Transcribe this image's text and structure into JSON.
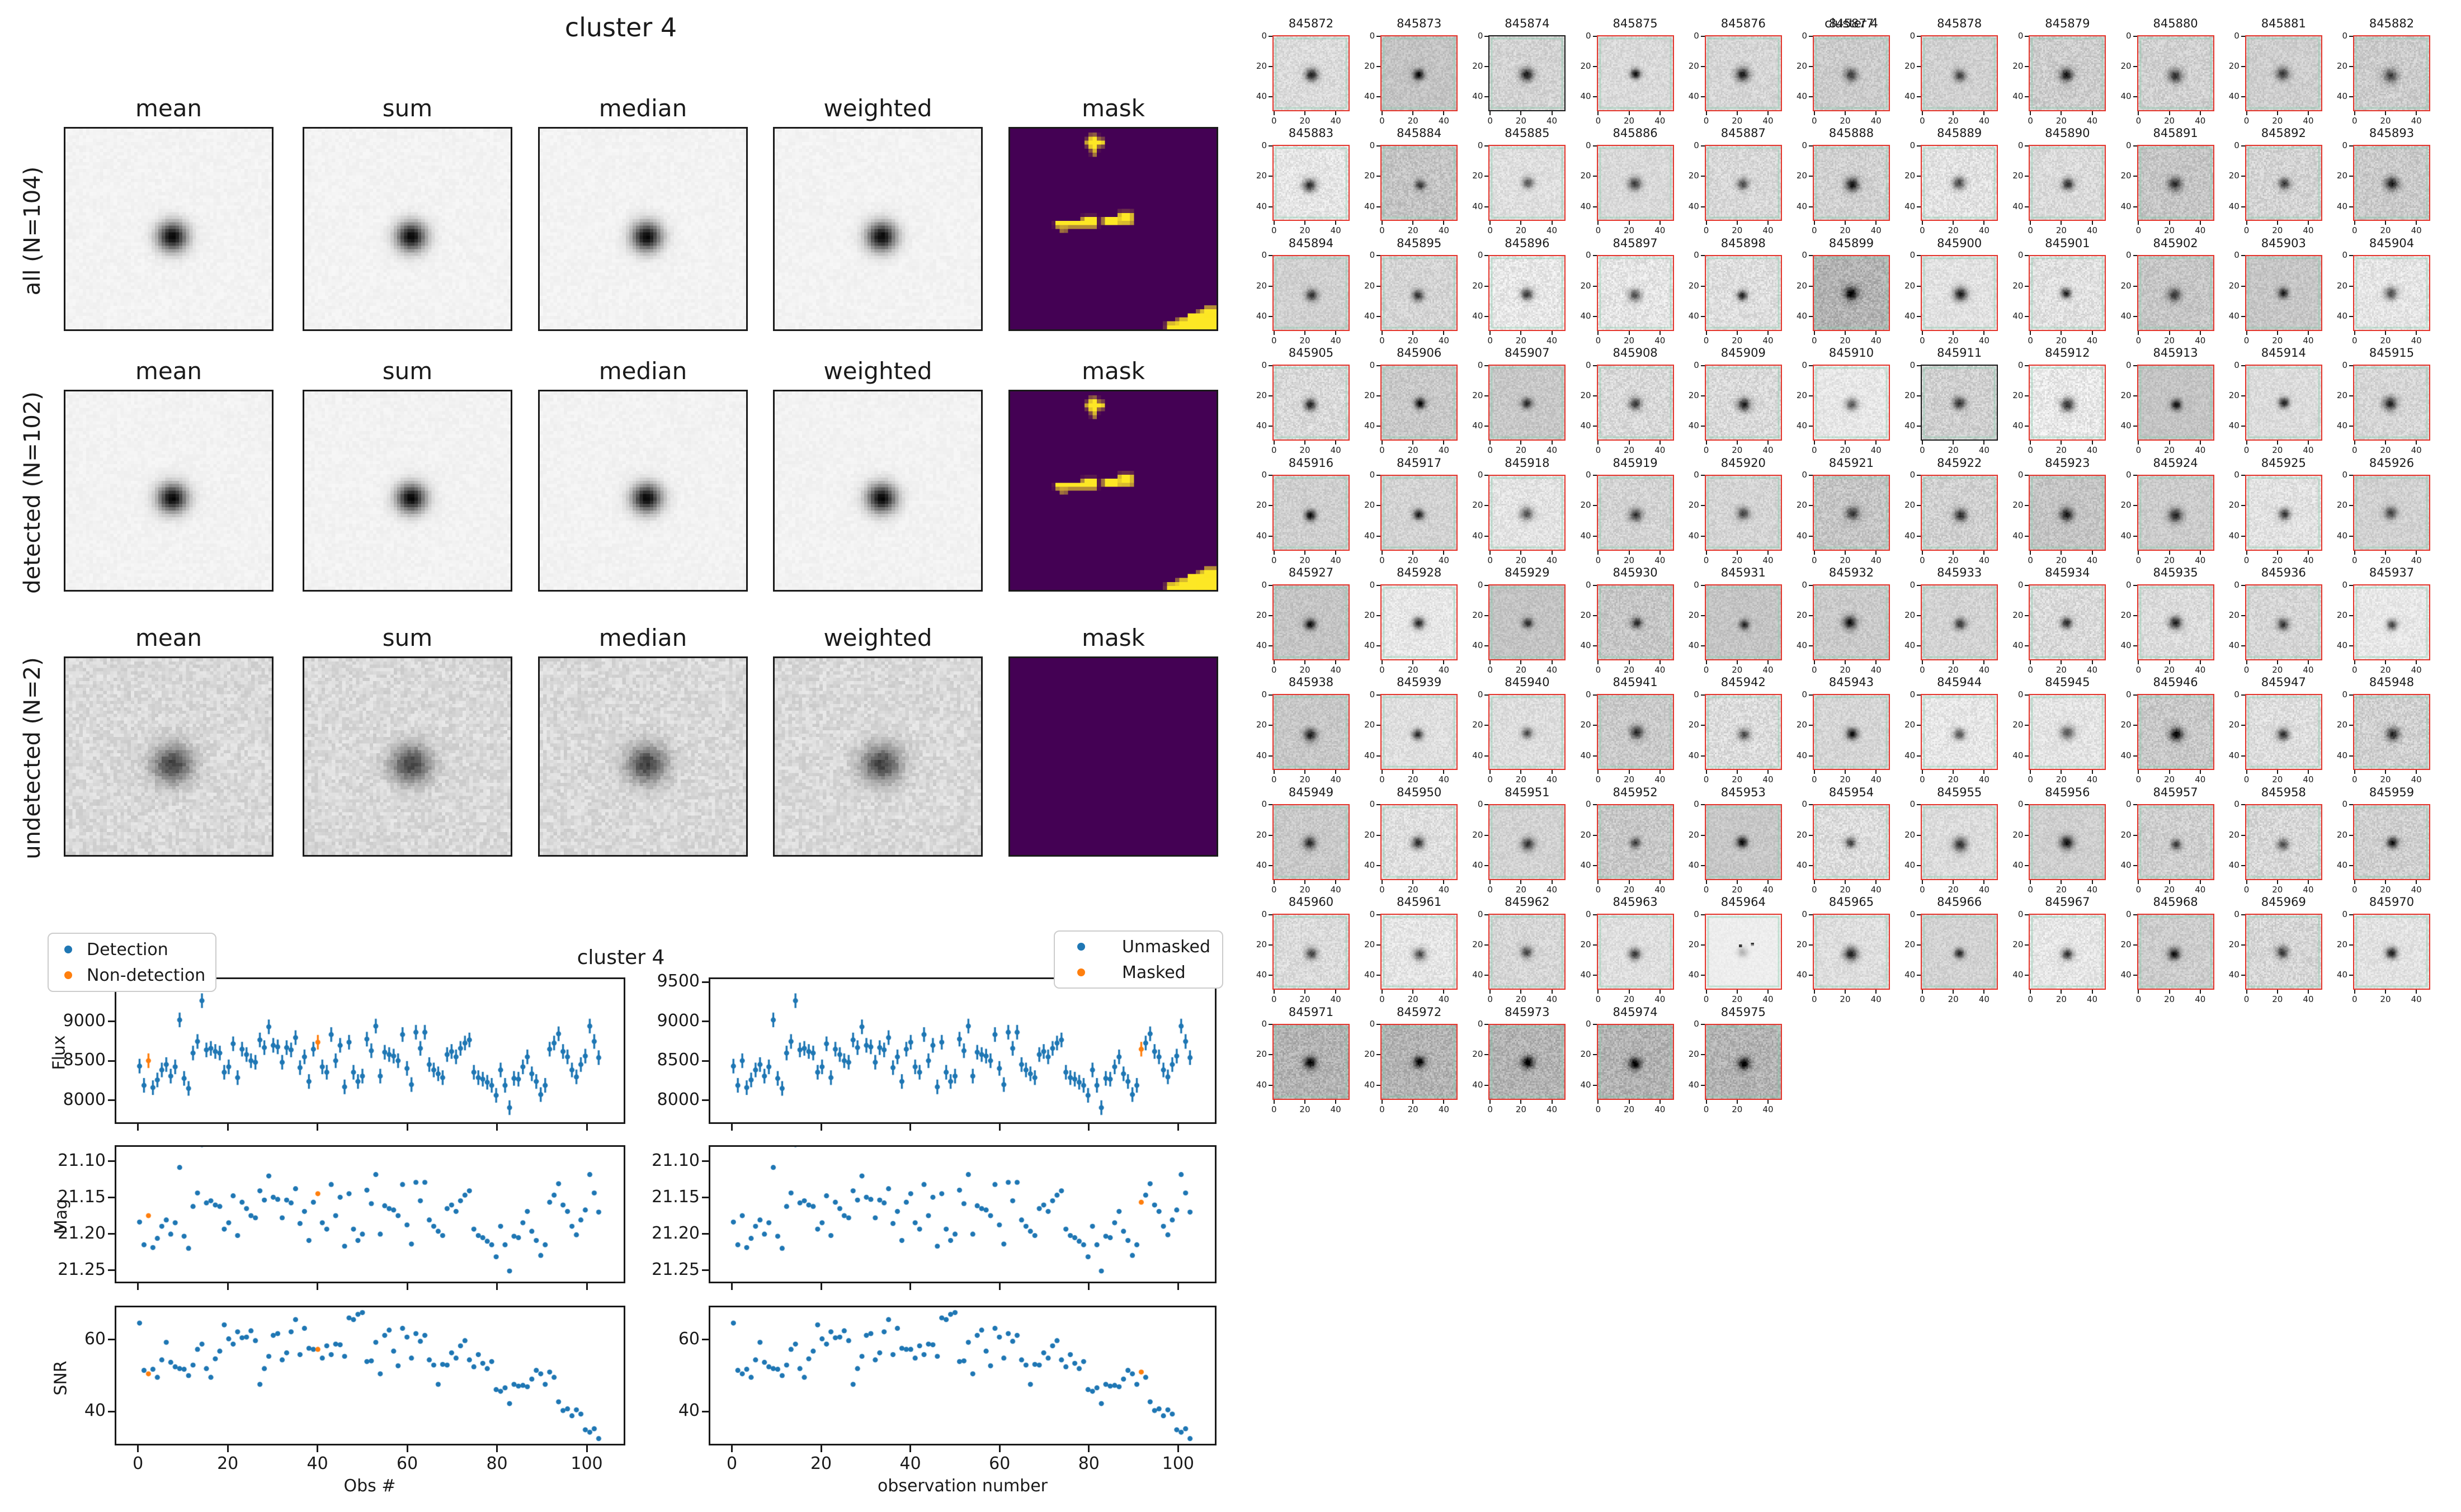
{
  "colors": {
    "blue": "#1f77b4",
    "orange": "#ff7f0e",
    "mask_bg": "#440154",
    "mask_fg": "#fde725",
    "stamp_border": "#e5352b",
    "undetected_border": "#1a1a1a"
  },
  "left_panels": {
    "suptitle": "cluster 4",
    "columns": [
      "mean",
      "sum",
      "median",
      "weighted",
      "mask"
    ],
    "rows": [
      {
        "label": "all (N=104)"
      },
      {
        "label": "detected (N=102)"
      },
      {
        "label": "undetected (N=2)"
      }
    ],
    "mask_shapes": [
      [
        19.2,
        1.6,
        2.0,
        3.7
      ],
      [
        18.3,
        2.7,
        4.6,
        1.6
      ],
      [
        19.8,
        5.3,
        1.2,
        1.2
      ],
      [
        10.9,
        23.0,
        10.2,
        1.6
      ],
      [
        12.3,
        24.6,
        1.3,
        1.1
      ],
      [
        17.4,
        21.9,
        3.7,
        1.2
      ],
      [
        22.5,
        22.0,
        4.0,
        2.0
      ],
      [
        26.2,
        20.8,
        3.6,
        3.0
      ],
      [
        37.8,
        48.2,
        4.0,
        1.8
      ],
      [
        40.5,
        47.2,
        4.0,
        2.8
      ],
      [
        43.0,
        46.0,
        4.0,
        4.0
      ],
      [
        45.5,
        45.2,
        4.5,
        4.8
      ],
      [
        47.0,
        44.4,
        3.0,
        1.8
      ]
    ]
  },
  "light_curves": {
    "title": "cluster 4",
    "legend_left": {
      "items": [
        {
          "label": "Detection"
        },
        {
          "label": "Non-detection"
        }
      ]
    },
    "legend_right": {
      "items": [
        {
          "label": "Unmasked"
        },
        {
          "label": "Masked"
        }
      ]
    },
    "xlabel_left": "Obs #",
    "xlabel_right": "observation number",
    "x_ticks": [
      "0",
      "20",
      "40",
      "60",
      "80",
      "100"
    ],
    "rows": [
      {
        "ylabel": "Flux",
        "ylim": [
          7700,
          9560
        ],
        "yticks": [
          {
            "v": 9500,
            "t": "9500"
          },
          {
            "v": 9000,
            "t": "9000"
          },
          {
            "v": 8500,
            "t": "8500"
          },
          {
            "v": 8000,
            "t": "8000"
          }
        ],
        "err": 95,
        "inverted": false
      },
      {
        "ylabel": "Mag",
        "ylim": [
          21.078,
          21.268
        ],
        "yticks": [
          {
            "v": 21.1,
            "t": "21.10"
          },
          {
            "v": 21.15,
            "t": "21.15"
          },
          {
            "v": 21.2,
            "t": "21.20"
          },
          {
            "v": 21.25,
            "t": "21.25"
          }
        ],
        "err": 0,
        "inverted": true
      },
      {
        "ylabel": "SNR",
        "ylim": [
          30.5,
          69.5
        ],
        "yticks": [
          {
            "v": 60,
            "t": "60"
          },
          {
            "v": 40,
            "t": "40"
          }
        ],
        "err": 0,
        "inverted": false
      }
    ]
  },
  "chart_data": {
    "type": "scatter",
    "title": "cluster 4",
    "xlabel_left": "Obs #",
    "xlabel_right": "observation number",
    "x_is_index": true,
    "n_points": 104,
    "xlim": [
      -5.2,
      108.6
    ],
    "x_ticks": [
      0,
      20,
      40,
      60,
      80,
      100
    ],
    "non_detection_indices": [
      2,
      40
    ],
    "masked_indices": [
      92
    ],
    "series": [
      {
        "name": "Flux",
        "ylim": [
          7700,
          9560
        ],
        "err": 95,
        "values": [
          8430,
          8180,
          8500,
          8150,
          8250,
          8380,
          8450,
          8300,
          8420,
          9030,
          8270,
          8140,
          8600,
          8750,
          9280,
          8640,
          8660,
          8620,
          8600,
          8350,
          8420,
          8720,
          8280,
          8650,
          8580,
          8500,
          8480,
          8770,
          8670,
          8940,
          8700,
          8680,
          8480,
          8670,
          8640,
          8800,
          8410,
          8550,
          8230,
          8650,
          8740,
          8420,
          8350,
          8840,
          8500,
          8700,
          8160,
          8740,
          8350,
          8230,
          8300,
          8780,
          8630,
          8950,
          8300,
          8610,
          8580,
          8560,
          8500,
          8840,
          8400,
          8190,
          8870,
          8660,
          8870,
          8450,
          8380,
          8330,
          8280,
          8580,
          8620,
          8550,
          8660,
          8730,
          8770,
          8350,
          8280,
          8260,
          8220,
          8180,
          8050,
          8380,
          8180,
          7890,
          8270,
          8260,
          8420,
          8550,
          8330,
          8230,
          8060,
          8180,
          8650,
          8730,
          8850,
          8620,
          8550,
          8380,
          8290,
          8450,
          8560,
          8950,
          8750,
          8540
        ]
      },
      {
        "name": "Mag",
        "ylim": [
          21.078,
          21.268
        ],
        "inverted": true,
        "values": [
          21.184,
          21.216,
          21.175,
          21.22,
          21.207,
          21.19,
          21.181,
          21.201,
          21.185,
          21.107,
          21.204,
          21.221,
          21.162,
          21.143,
          21.075,
          21.157,
          21.154,
          21.16,
          21.162,
          21.194,
          21.185,
          21.147,
          21.203,
          21.156,
          21.165,
          21.175,
          21.178,
          21.14,
          21.153,
          21.119,
          21.149,
          21.152,
          21.178,
          21.153,
          21.157,
          21.137,
          21.186,
          21.169,
          21.21,
          21.156,
          21.144,
          21.185,
          21.194,
          21.131,
          21.175,
          21.149,
          21.218,
          21.144,
          21.194,
          21.21,
          21.201,
          21.139,
          21.158,
          21.117,
          21.201,
          21.161,
          21.165,
          21.167,
          21.175,
          21.131,
          21.188,
          21.215,
          21.128,
          21.154,
          21.128,
          21.181,
          21.19,
          21.197,
          21.203,
          21.165,
          21.16,
          21.169,
          21.154,
          21.146,
          21.14,
          21.194,
          21.203,
          21.206,
          21.211,
          21.216,
          21.233,
          21.19,
          21.216,
          21.253,
          21.204,
          21.206,
          21.185,
          21.169,
          21.197,
          21.21,
          21.231,
          21.216,
          21.156,
          21.146,
          21.13,
          21.16,
          21.169,
          21.19,
          21.202,
          21.181,
          21.167,
          21.117,
          21.143,
          21.17
        ]
      },
      {
        "name": "SNR",
        "ylim": [
          30.5,
          69.5
        ],
        "values": [
          65.0,
          51.5,
          50.5,
          51.8,
          49.5,
          54.5,
          59.5,
          53.8,
          52.5,
          52.0,
          51.8,
          50.0,
          53.0,
          57.5,
          59.0,
          52.0,
          49.5,
          54.8,
          57.0,
          64.5,
          60.5,
          59.0,
          62.5,
          60.8,
          61.0,
          62.8,
          60.0,
          47.5,
          52.0,
          55.5,
          61.5,
          62.0,
          54.5,
          56.5,
          62.5,
          66.0,
          56.0,
          63.5,
          57.8,
          57.5,
          57.5,
          55.0,
          58.5,
          56.0,
          59.0,
          58.8,
          55.5,
          66.5,
          66.0,
          67.5,
          68.0,
          54.0,
          54.2,
          59.5,
          50.5,
          61.5,
          63.0,
          57.0,
          52.8,
          63.5,
          61.0,
          55.0,
          62.0,
          59.8,
          61.5,
          54.5,
          53.0,
          47.5,
          53.2,
          53.0,
          56.5,
          55.0,
          58.5,
          60.0,
          54.5,
          52.5,
          56.0,
          53.5,
          52.0,
          54.0,
          46.0,
          45.5,
          46.5,
          42.0,
          47.5,
          47.0,
          47.2,
          46.8,
          49.0,
          51.5,
          50.5,
          47.5,
          51.0,
          49.5,
          42.5,
          40.0,
          40.5,
          38.5,
          40.2,
          39.0,
          34.5,
          33.8,
          34.8,
          32.0
        ]
      }
    ]
  },
  "stamps": {
    "suptitle": "cluster 4",
    "x_tick_labels": [
      "0",
      "20",
      "40"
    ],
    "y_tick_labels": [
      "0",
      "20",
      "40"
    ],
    "undetected_ids": [
      845874,
      845911
    ],
    "light_stamp_id": 845964,
    "dark_stamp_ids": [
      845899,
      845971,
      845972,
      845973,
      845974,
      845975
    ],
    "ids": [
      845872,
      845873,
      845874,
      845875,
      845876,
      845877,
      845878,
      845879,
      845880,
      845881,
      845882,
      845883,
      845884,
      845885,
      845886,
      845887,
      845888,
      845889,
      845890,
      845891,
      845892,
      845893,
      845894,
      845895,
      845896,
      845897,
      845898,
      845899,
      845900,
      845901,
      845902,
      845903,
      845904,
      845905,
      845906,
      845907,
      845908,
      845909,
      845910,
      845911,
      845912,
      845913,
      845914,
      845915,
      845916,
      845917,
      845918,
      845919,
      845920,
      845921,
      845922,
      845923,
      845924,
      845925,
      845926,
      845927,
      845928,
      845929,
      845930,
      845931,
      845932,
      845933,
      845934,
      845935,
      845936,
      845937,
      845938,
      845939,
      845940,
      845941,
      845942,
      845943,
      845944,
      845945,
      845946,
      845947,
      845948,
      845949,
      845950,
      845951,
      845952,
      845953,
      845954,
      845955,
      845956,
      845957,
      845958,
      845959,
      845960,
      845961,
      845962,
      845963,
      845964,
      845965,
      845966,
      845967,
      845968,
      845969,
      845970,
      845971,
      845972,
      845973,
      845974,
      845975
    ]
  }
}
